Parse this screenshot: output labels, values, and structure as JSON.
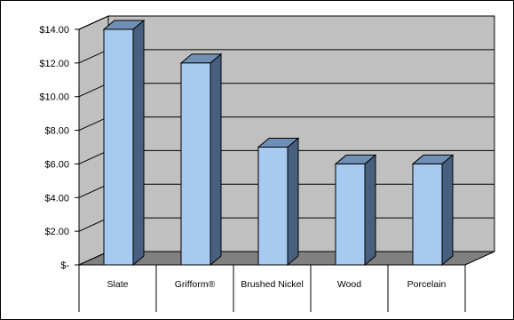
{
  "chart_data": {
    "type": "bar",
    "style": "3d-column",
    "title": "",
    "xlabel": "",
    "ylabel": "",
    "categories": [
      "Slate",
      "Grifform®",
      "Brushed Nickel",
      "Wood",
      "Porcelain"
    ],
    "series": [
      {
        "values": [
          14.0,
          12.0,
          7.0,
          6.0,
          6.0
        ]
      }
    ],
    "ylim": [
      0,
      14
    ],
    "y_ticks": [
      0,
      2,
      4,
      6,
      8,
      10,
      12,
      14
    ],
    "y_tick_labels": [
      "$-",
      "$2.00",
      "$4.00",
      "$6.00",
      "$8.00",
      "$10.00",
      "$12.00",
      "$14.00"
    ],
    "grid": true,
    "legend": "none",
    "colors": {
      "bar_front": "#a6caf0",
      "bar_side": "#48607f",
      "bar_top": "#6f8fb5",
      "back_wall": "#c0c0c0",
      "floor": "#808080",
      "gridline": "#000000"
    }
  }
}
